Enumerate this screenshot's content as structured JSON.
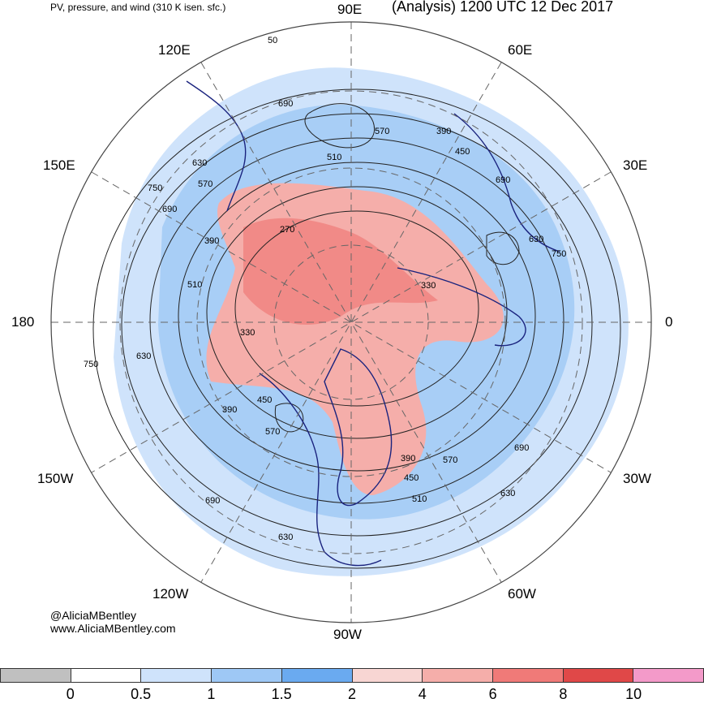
{
  "header": {
    "left_title": "PV, pressure, and wind (310 K isen. sfc.)",
    "right_title": "(Analysis) 1200 UTC 12 Dec 2017"
  },
  "longitude_labels": [
    "90E",
    "60E",
    "30E",
    "0",
    "30W",
    "60W",
    "90W",
    "120W",
    "150W",
    "180",
    "150E",
    "120E"
  ],
  "contour_labels": [
    "50",
    "690",
    "570",
    "390",
    "450",
    "510",
    "630",
    "750",
    "690",
    "570",
    "390",
    "270",
    "510",
    "330",
    "630",
    "750",
    "390",
    "450",
    "570",
    "690",
    "630",
    "330",
    "690",
    "570",
    "630",
    "390",
    "450",
    "510",
    "630",
    "690",
    "750"
  ],
  "credits": {
    "line1": "@AliciaMBentley",
    "line2": "www.AliciaMBentley.com"
  },
  "colorbar": {
    "colors": [
      "#c0c0c0",
      "#ffffff",
      "#cfe3fb",
      "#9ec8f5",
      "#6aaaf0",
      "#f8d6d3",
      "#f5aeaa",
      "#f07a78",
      "#e04848",
      "#f39ac9"
    ],
    "ticks": [
      "0",
      "0.5",
      "1",
      "1.5",
      "2",
      "4",
      "6",
      "8",
      "10"
    ]
  }
}
